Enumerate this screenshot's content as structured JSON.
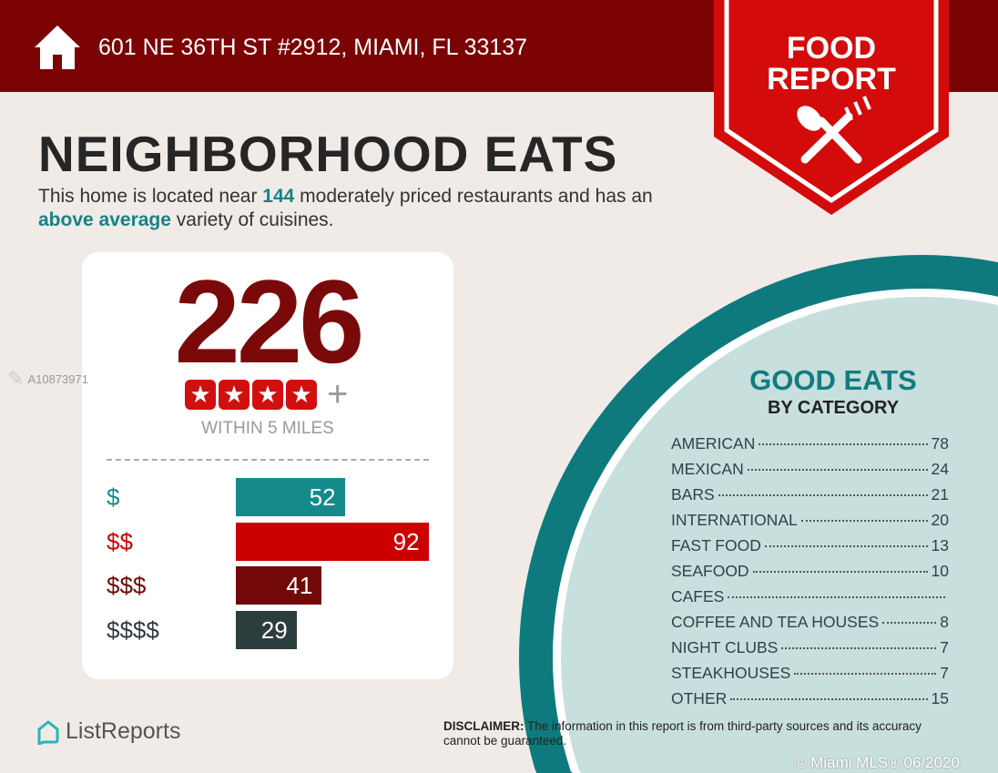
{
  "header": {
    "address": "601 NE 36TH ST #2912, MIAMI, FL 33137",
    "icon": "home-icon"
  },
  "badge": {
    "line1": "FOOD",
    "line2": "REPORT",
    "icon": "fork-knife-icon"
  },
  "title": "NEIGHBORHOOD EATS",
  "summary": {
    "p1": "This home is located near ",
    "count": "144",
    "p2": " moderately priced restaurants and has an ",
    "variety": "above average",
    "p3": " variety of cuisines."
  },
  "card": {
    "total": "226",
    "rating_stars": 4,
    "rating_plus": "+",
    "within": "WITHIN 5 MILES",
    "price_levels": [
      {
        "label": "$",
        "value": 52,
        "color": "#148a8c",
        "label_color": "#148a8c"
      },
      {
        "label": "$$",
        "value": 92,
        "color": "#cc0000",
        "label_color": "#cc0000"
      },
      {
        "label": "$$$",
        "value": 41,
        "color": "#720808",
        "label_color": "#720808"
      },
      {
        "label": "$$$$",
        "value": 29,
        "color": "#2c3d3e",
        "label_color": "#2c3d3e"
      }
    ]
  },
  "good_eats": {
    "title": "GOOD EATS",
    "subtitle": "BY CATEGORY",
    "categories": [
      {
        "name": "AMERICAN",
        "count": "78"
      },
      {
        "name": "MEXICAN",
        "count": "24"
      },
      {
        "name": "BARS",
        "count": "21"
      },
      {
        "name": "INTERNATIONAL",
        "count": "20"
      },
      {
        "name": "FAST FOOD",
        "count": "13"
      },
      {
        "name": "SEAFOOD",
        "count": "10"
      },
      {
        "name": "CAFES",
        "count": ""
      },
      {
        "name": "COFFEE AND TEA HOUSES",
        "count": "8"
      },
      {
        "name": "NIGHT CLUBS",
        "count": "7"
      },
      {
        "name": "STEAKHOUSES",
        "count": "7"
      },
      {
        "name": "OTHER",
        "count": "15"
      }
    ]
  },
  "disclaimer": {
    "label": "DISCLAIMER:",
    "text": " The information in this report is from third-party sources and its accuracy cannot be guaranteed."
  },
  "logo": "ListReports",
  "watermark": {
    "id": "A10873971",
    "copyright": "© Miami MLS® 06/2020"
  }
}
